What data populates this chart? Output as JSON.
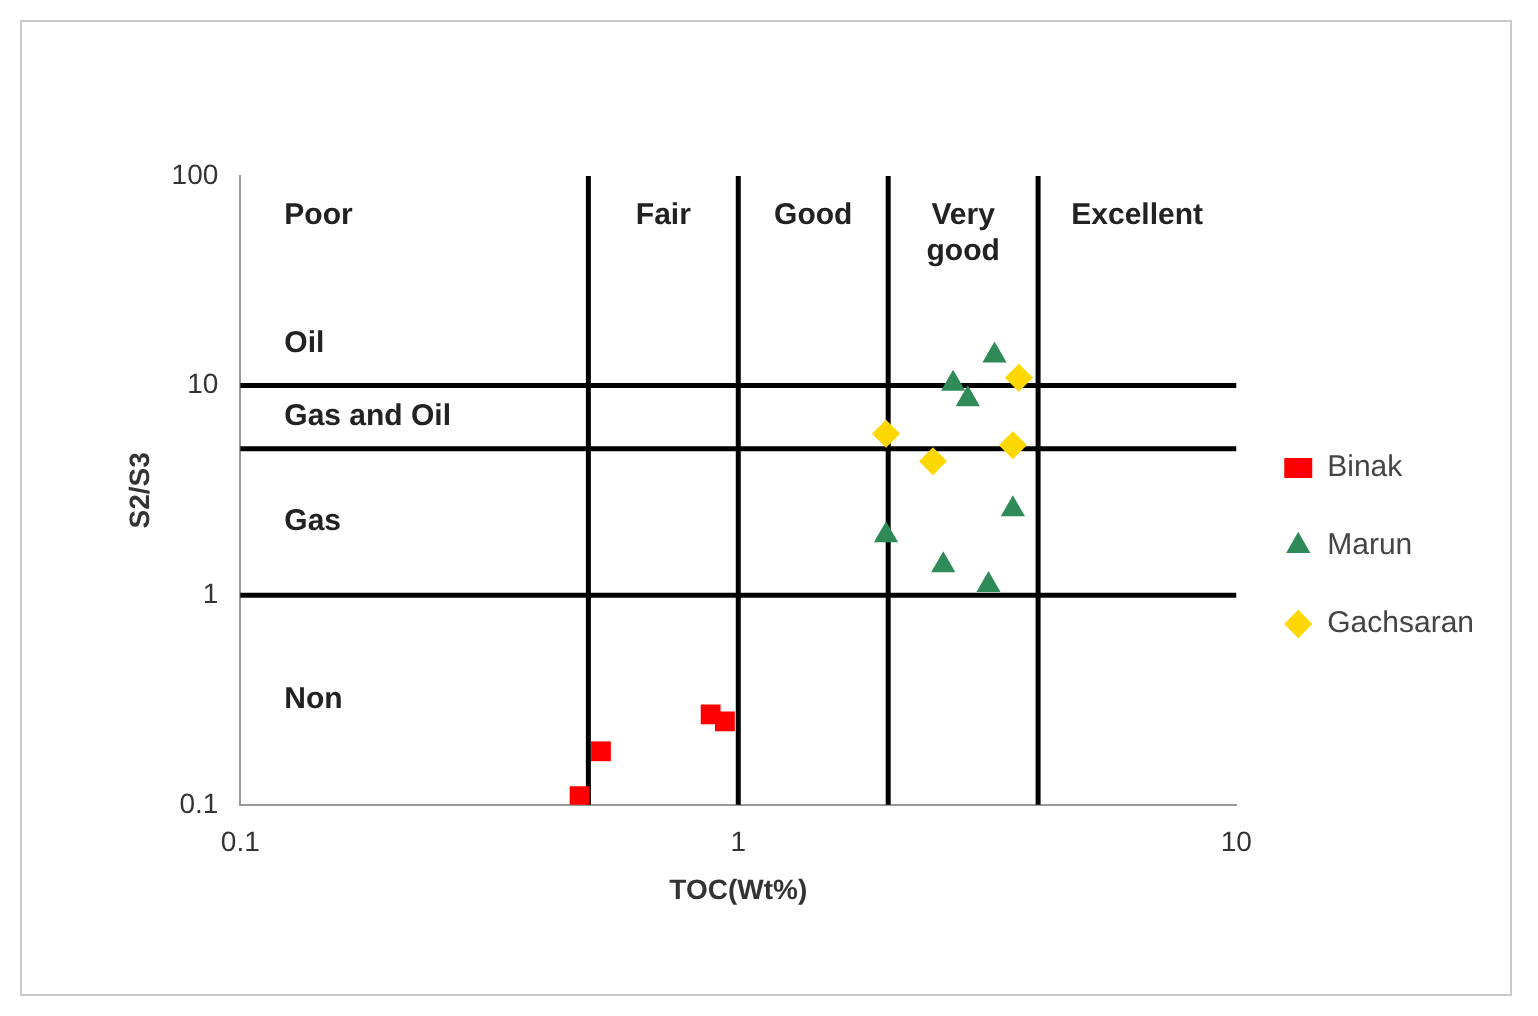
{
  "chart_data": {
    "type": "scatter",
    "xlabel": "TOC(Wt%)",
    "ylabel": "S2/S3",
    "log": "xy",
    "xlim": [
      0.1,
      10
    ],
    "xticks": [
      0.1,
      1,
      10
    ],
    "ylim": [
      0.1,
      100
    ],
    "yticks": [
      0.1,
      1,
      10,
      100
    ],
    "grid": false,
    "legend": "right",
    "series": [
      {
        "name": "Binak",
        "color": "#ff0000",
        "marker": "square",
        "x": [
          0.48,
          0.53,
          0.88,
          0.94
        ],
        "values": [
          0.11,
          0.18,
          0.27,
          0.25
        ]
      },
      {
        "name": "Marun",
        "color": "#2e8b57",
        "marker": "triangle",
        "x": [
          3.27,
          2.7,
          2.89,
          3.56,
          1.98,
          2.58,
          3.18
        ],
        "values": [
          13.9,
          10.2,
          8.6,
          2.57,
          1.93,
          1.39,
          1.12
        ]
      },
      {
        "name": "Gachsaran",
        "color": "#ffd700",
        "marker": "diamond",
        "x": [
          3.66,
          1.98,
          2.46,
          3.56
        ],
        "values": [
          10.9,
          5.9,
          4.35,
          5.2
        ]
      }
    ],
    "ref_lines": [
      {
        "axis": "x",
        "value": 0.5,
        "color": "#000000"
      },
      {
        "axis": "x",
        "value": 1,
        "color": "#000000"
      },
      {
        "axis": "x",
        "value": 2,
        "color": "#000000"
      },
      {
        "axis": "x",
        "value": 4,
        "color": "#000000"
      },
      {
        "axis": "y",
        "value": 10,
        "color": "#000000"
      },
      {
        "axis": "y",
        "value": 5,
        "color": "#000000"
      },
      {
        "axis": "y",
        "value": 1,
        "color": "#000000"
      }
    ],
    "annotations": [
      "Poor",
      "Fair",
      "Good",
      "Very good",
      "Excellent",
      "Oil",
      "Gas and Oil",
      "Gas",
      "Non"
    ]
  }
}
